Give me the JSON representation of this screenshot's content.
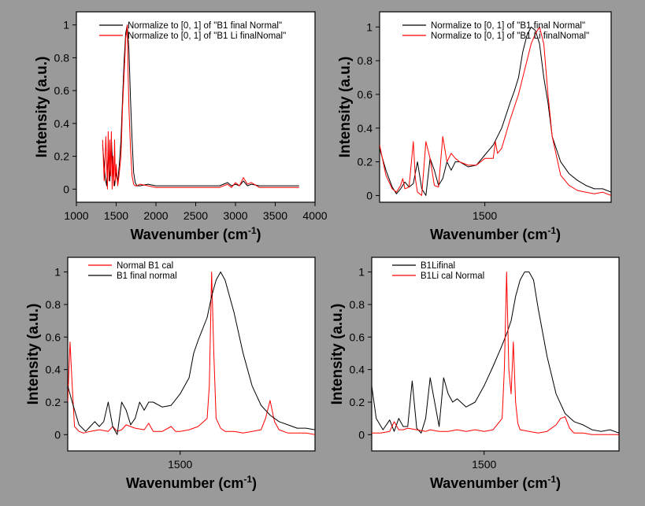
{
  "chart_data": [
    {
      "type": "line",
      "xlabel_main": "Wavenumber (cm",
      "xlabel_sup": "-1",
      "xlabel_close": ")",
      "ylabel": "Intensity (a.u.)",
      "xlim": [
        1000,
        4000
      ],
      "ylim": [
        -0.08,
        1.08
      ],
      "xticks": [
        1000,
        1500,
        2000,
        2500,
        3000,
        3500,
        4000
      ],
      "yticks": [
        0,
        0.2,
        0.4,
        0.6,
        0.8,
        1
      ],
      "ytick_labels": [
        "0",
        "0.2",
        "0.4",
        "0.6",
        "0.8",
        "1"
      ],
      "legend_position": "top-center",
      "series": [
        {
          "name": "Normalize to [0, 1] of \"B1 final Normal\"",
          "color": "#000000",
          "x": [
            1330,
            1360,
            1380,
            1400,
            1420,
            1440,
            1460,
            1480,
            1500,
            1520,
            1540,
            1560,
            1580,
            1600,
            1620,
            1640,
            1660,
            1680,
            1700,
            1720,
            1740,
            1760,
            1800,
            1900,
            2000,
            2200,
            2400,
            2600,
            2800,
            2900,
            2950,
            3000,
            3050,
            3100,
            3150,
            3200,
            3300,
            3500,
            3700,
            3800
          ],
          "y": [
            0.27,
            0.08,
            0.02,
            0.22,
            0.05,
            0.3,
            0.12,
            0.02,
            0.1,
            0.04,
            0.15,
            0.3,
            0.55,
            0.78,
            0.95,
            1.0,
            0.85,
            0.55,
            0.3,
            0.1,
            0.04,
            0.02,
            0.02,
            0.03,
            0.02,
            0.02,
            0.02,
            0.02,
            0.02,
            0.04,
            0.02,
            0.03,
            0.02,
            0.05,
            0.02,
            0.03,
            0.02,
            0.02,
            0.02,
            0.02
          ]
        },
        {
          "name": "Normalize to [0, 1] of \"B1 Li finalNomal\"",
          "color": "#ff0000",
          "x": [
            1330,
            1350,
            1370,
            1390,
            1400,
            1410,
            1420,
            1430,
            1440,
            1450,
            1460,
            1470,
            1480,
            1490,
            1500,
            1520,
            1540,
            1560,
            1580,
            1600,
            1610,
            1620,
            1630,
            1640,
            1650,
            1660,
            1680,
            1700,
            1720,
            1740,
            1760,
            1800,
            1900,
            2000,
            2200,
            2400,
            2600,
            2800,
            2900,
            2950,
            3000,
            3050,
            3100,
            3150,
            3200,
            3300,
            3500,
            3700,
            3800
          ],
          "y": [
            0.3,
            0.05,
            0.32,
            0.0,
            0.35,
            0.05,
            0.3,
            0.08,
            0.35,
            0.0,
            0.2,
            0.02,
            0.3,
            0.05,
            0.15,
            0.02,
            0.1,
            0.2,
            0.5,
            0.7,
            0.8,
            0.92,
            0.95,
            1.0,
            0.7,
            0.5,
            0.25,
            0.08,
            0.03,
            0.02,
            0.02,
            0.03,
            0.02,
            0.01,
            0.01,
            0.01,
            0.01,
            0.01,
            0.03,
            0.01,
            0.04,
            0.02,
            0.07,
            0.03,
            0.04,
            0.01,
            0.01,
            0.01,
            0.01
          ]
        }
      ]
    },
    {
      "type": "line",
      "xlabel_main": "Wavenumber (cm",
      "xlabel_sup": "-1",
      "xlabel_close": ")",
      "ylabel": "Intensity (a.u.)",
      "xlim": [
        1250,
        1800
      ],
      "ylim": [
        -0.04,
        1.09
      ],
      "xticks": [
        1500
      ],
      "yticks": [
        0,
        0.2,
        0.4,
        0.6,
        0.8,
        1
      ],
      "ytick_labels": [
        "0",
        "0.2",
        "0.4",
        "0.6",
        "0.8",
        "1"
      ],
      "legend_position": "top-center",
      "series": [
        {
          "name": "Normalize to [0, 1] of \"B1 final Normal\"",
          "color": "#000000",
          "x": [
            1250,
            1265,
            1280,
            1290,
            1300,
            1310,
            1320,
            1330,
            1340,
            1350,
            1360,
            1370,
            1380,
            1390,
            1400,
            1410,
            1420,
            1430,
            1440,
            1460,
            1480,
            1500,
            1520,
            1540,
            1560,
            1570,
            1580,
            1590,
            1600,
            1610,
            1620,
            1630,
            1640,
            1650,
            1660,
            1680,
            1700,
            1720,
            1740,
            1760,
            1780,
            1800
          ],
          "y": [
            0.28,
            0.15,
            0.05,
            0.01,
            0.04,
            0.08,
            0.05,
            0.07,
            0.2,
            0.04,
            0.0,
            0.22,
            0.15,
            0.06,
            0.1,
            0.2,
            0.15,
            0.2,
            0.2,
            0.17,
            0.18,
            0.24,
            0.3,
            0.4,
            0.55,
            0.62,
            0.7,
            0.85,
            0.95,
            1.0,
            0.98,
            0.9,
            0.7,
            0.55,
            0.35,
            0.2,
            0.13,
            0.09,
            0.06,
            0.04,
            0.04,
            0.02
          ]
        },
        {
          "name": "Normalize to [0, 1] of \"B1 Li finalNomal\"",
          "color": "#ff0000",
          "x": [
            1250,
            1265,
            1280,
            1290,
            1300,
            1305,
            1310,
            1320,
            1330,
            1335,
            1340,
            1350,
            1360,
            1370,
            1380,
            1390,
            1400,
            1410,
            1420,
            1430,
            1440,
            1460,
            1480,
            1500,
            1520,
            1525,
            1530,
            1540,
            1560,
            1580,
            1600,
            1610,
            1620,
            1630,
            1640,
            1650,
            1660,
            1680,
            1700,
            1720,
            1740,
            1760,
            1780,
            1800
          ],
          "y": [
            0.3,
            0.12,
            0.04,
            0.02,
            0.06,
            0.1,
            0.04,
            0.05,
            0.32,
            0.1,
            0.02,
            0.0,
            0.32,
            0.22,
            0.06,
            0.05,
            0.35,
            0.2,
            0.25,
            0.22,
            0.2,
            0.18,
            0.18,
            0.22,
            0.22,
            0.32,
            0.25,
            0.28,
            0.45,
            0.6,
            0.8,
            0.9,
            0.96,
            1.0,
            0.9,
            0.6,
            0.35,
            0.12,
            0.06,
            0.03,
            0.02,
            0.01,
            0.02,
            0.0
          ]
        }
      ]
    },
    {
      "type": "line",
      "xlabel_main": "Wavenumber (cm",
      "xlabel_sup": "-1",
      "xlabel_close": ")",
      "ylabel": "Intensity (a.u.)",
      "xlim": [
        1250,
        1800
      ],
      "ylim": [
        -0.1,
        1.09
      ],
      "xticks": [
        1500
      ],
      "yticks": [
        0,
        0.2,
        0.4,
        0.6,
        0.8,
        1
      ],
      "ytick_labels": [
        "0",
        "0.2",
        "0.4",
        "0.6",
        "0.8",
        "1"
      ],
      "legend_position": "top-left",
      "series": [
        {
          "name": "Normal B1 cal",
          "color": "#ff0000",
          "x": [
            1250,
            1255,
            1260,
            1265,
            1275,
            1285,
            1300,
            1320,
            1340,
            1350,
            1360,
            1370,
            1380,
            1400,
            1420,
            1430,
            1440,
            1460,
            1480,
            1490,
            1500,
            1520,
            1540,
            1560,
            1565,
            1570,
            1575,
            1580,
            1590,
            1600,
            1620,
            1640,
            1660,
            1680,
            1690,
            1700,
            1710,
            1720,
            1740,
            1760,
            1780,
            1800
          ],
          "y": [
            0.2,
            0.57,
            0.3,
            0.05,
            0.02,
            0.01,
            0.02,
            0.03,
            0.02,
            0.05,
            0.02,
            0.03,
            0.06,
            0.04,
            0.03,
            0.07,
            0.02,
            0.02,
            0.05,
            0.02,
            0.02,
            0.03,
            0.05,
            0.1,
            0.3,
            1.0,
            0.5,
            0.1,
            0.04,
            0.02,
            0.02,
            0.01,
            0.02,
            0.03,
            0.1,
            0.21,
            0.08,
            0.03,
            0.01,
            0.01,
            0.01,
            0.0
          ]
        },
        {
          "name": "B1 final normal",
          "color": "#000000",
          "x": [
            1250,
            1260,
            1275,
            1290,
            1300,
            1310,
            1320,
            1330,
            1340,
            1350,
            1360,
            1370,
            1380,
            1390,
            1400,
            1410,
            1420,
            1430,
            1440,
            1460,
            1480,
            1500,
            1520,
            1530,
            1540,
            1550,
            1560,
            1570,
            1580,
            1590,
            1600,
            1620,
            1640,
            1660,
            1680,
            1700,
            1720,
            1740,
            1760,
            1780,
            1800
          ],
          "y": [
            0.3,
            0.2,
            0.06,
            0.02,
            0.05,
            0.08,
            0.05,
            0.08,
            0.2,
            0.05,
            0.0,
            0.2,
            0.15,
            0.06,
            0.1,
            0.2,
            0.15,
            0.2,
            0.2,
            0.17,
            0.18,
            0.25,
            0.35,
            0.5,
            0.58,
            0.65,
            0.72,
            0.85,
            0.95,
            1.0,
            0.95,
            0.75,
            0.5,
            0.3,
            0.18,
            0.12,
            0.08,
            0.06,
            0.04,
            0.04,
            0.03
          ]
        }
      ]
    },
    {
      "type": "line",
      "xlabel_main": "Wavenumber (cm",
      "xlabel_sup": "-1",
      "xlabel_close": ")",
      "ylabel": "Intensity (a.u.)",
      "xlim": [
        1250,
        1800
      ],
      "ylim": [
        -0.1,
        1.09
      ],
      "xticks": [
        1500
      ],
      "yticks": [
        0,
        0.2,
        0.4,
        0.6,
        0.8,
        1
      ],
      "ytick_labels": [
        "0",
        "0.2",
        "0.4",
        "0.6",
        "0.8",
        "1"
      ],
      "legend_position": "top-left",
      "series": [
        {
          "name": "B1Lifinal",
          "color": "#000000",
          "x": [
            1250,
            1260,
            1275,
            1290,
            1300,
            1310,
            1320,
            1330,
            1340,
            1350,
            1360,
            1370,
            1380,
            1390,
            1400,
            1410,
            1420,
            1430,
            1440,
            1460,
            1480,
            1500,
            1520,
            1540,
            1550,
            1560,
            1570,
            1580,
            1590,
            1600,
            1610,
            1620,
            1640,
            1660,
            1680,
            1700,
            1720,
            1740,
            1760,
            1780,
            1800
          ],
          "y": [
            0.3,
            0.1,
            0.03,
            0.09,
            0.02,
            0.1,
            0.05,
            0.05,
            0.33,
            0.04,
            0.01,
            0.1,
            0.35,
            0.2,
            0.05,
            0.35,
            0.25,
            0.2,
            0.22,
            0.17,
            0.2,
            0.3,
            0.42,
            0.55,
            0.62,
            0.7,
            0.85,
            0.95,
            1.0,
            1.0,
            0.95,
            0.78,
            0.48,
            0.25,
            0.13,
            0.08,
            0.06,
            0.03,
            0.02,
            0.03,
            0.01
          ]
        },
        {
          "name": "B1Li cal Normal",
          "color": "#ff0000",
          "x": [
            1250,
            1270,
            1290,
            1300,
            1310,
            1320,
            1330,
            1350,
            1370,
            1380,
            1400,
            1420,
            1440,
            1460,
            1480,
            1500,
            1520,
            1540,
            1545,
            1550,
            1555,
            1560,
            1565,
            1570,
            1575,
            1580,
            1600,
            1620,
            1640,
            1660,
            1670,
            1680,
            1690,
            1700,
            1720,
            1740,
            1760,
            1780,
            1800
          ],
          "y": [
            0.01,
            0.01,
            0.02,
            0.08,
            0.03,
            0.03,
            0.04,
            0.03,
            0.02,
            0.03,
            0.02,
            0.02,
            0.03,
            0.02,
            0.03,
            0.02,
            0.03,
            0.1,
            0.4,
            1.0,
            0.4,
            0.25,
            0.57,
            0.2,
            0.07,
            0.03,
            0.02,
            0.01,
            0.02,
            0.06,
            0.1,
            0.11,
            0.04,
            0.01,
            0.01,
            0.0,
            0.0,
            0.0,
            0.0
          ]
        }
      ]
    }
  ]
}
